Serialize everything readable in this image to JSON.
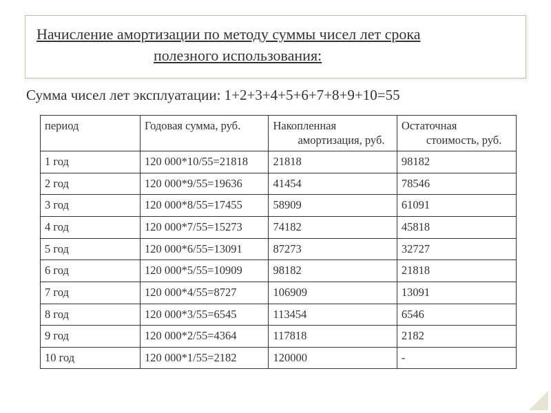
{
  "heading": {
    "line1": "Начисление амортизации по методу суммы чисел лет срока",
    "line2": "полезного использования:"
  },
  "subtitle": "Сумма чисел лет эксплуатации: 1+2+3+4+5+6+7+8+9+10=55",
  "table": {
    "columns": {
      "period": "период",
      "annual": "Годовая сумма, руб.",
      "accum_l1": "Накопленная",
      "accum_l2": "амортизация, руб.",
      "remain_l1": "Остаточная",
      "remain_l2": "стоимость, руб."
    },
    "rows": [
      {
        "period": "1 год",
        "annual": "120 000*10/55=21818",
        "accum": "21818",
        "remain": "98182"
      },
      {
        "period": "2 год",
        "annual": "120 000*9/55=19636",
        "accum": "41454",
        "remain": "78546"
      },
      {
        "period": "3 год",
        "annual": "120 000*8/55=17455",
        "accum": "58909",
        "remain": "61091"
      },
      {
        "period": "4 год",
        "annual": "120 000*7/55=15273",
        "accum": "74182",
        "remain": "45818"
      },
      {
        "period": "5 год",
        "annual": "120 000*6/55=13091",
        "accum": "87273",
        "remain": "32727"
      },
      {
        "period": "6 год",
        "annual": "120 000*5/55=10909",
        "accum": "98182",
        "remain": "21818"
      },
      {
        "period": "7 год",
        "annual": "120 000*4/55=8727",
        "accum": "106909",
        "remain": "13091"
      },
      {
        "period": "8 год",
        "annual": "120 000*3/55=6545",
        "accum": "113454",
        "remain": "6546"
      },
      {
        "period": "9 год",
        "annual": "120 000*2/55=4364",
        "accum": "117818",
        "remain": "2182"
      },
      {
        "period": "10 год",
        "annual": "120 000*1/55=2182",
        "accum": "120000",
        "remain": "-"
      }
    ]
  },
  "style": {
    "text_color": "#333333",
    "border_color": "#333333",
    "frame_color": "#c9bfa0",
    "background": "#ffffff",
    "title_fontsize": 22,
    "body_fontsize": 16.5
  }
}
